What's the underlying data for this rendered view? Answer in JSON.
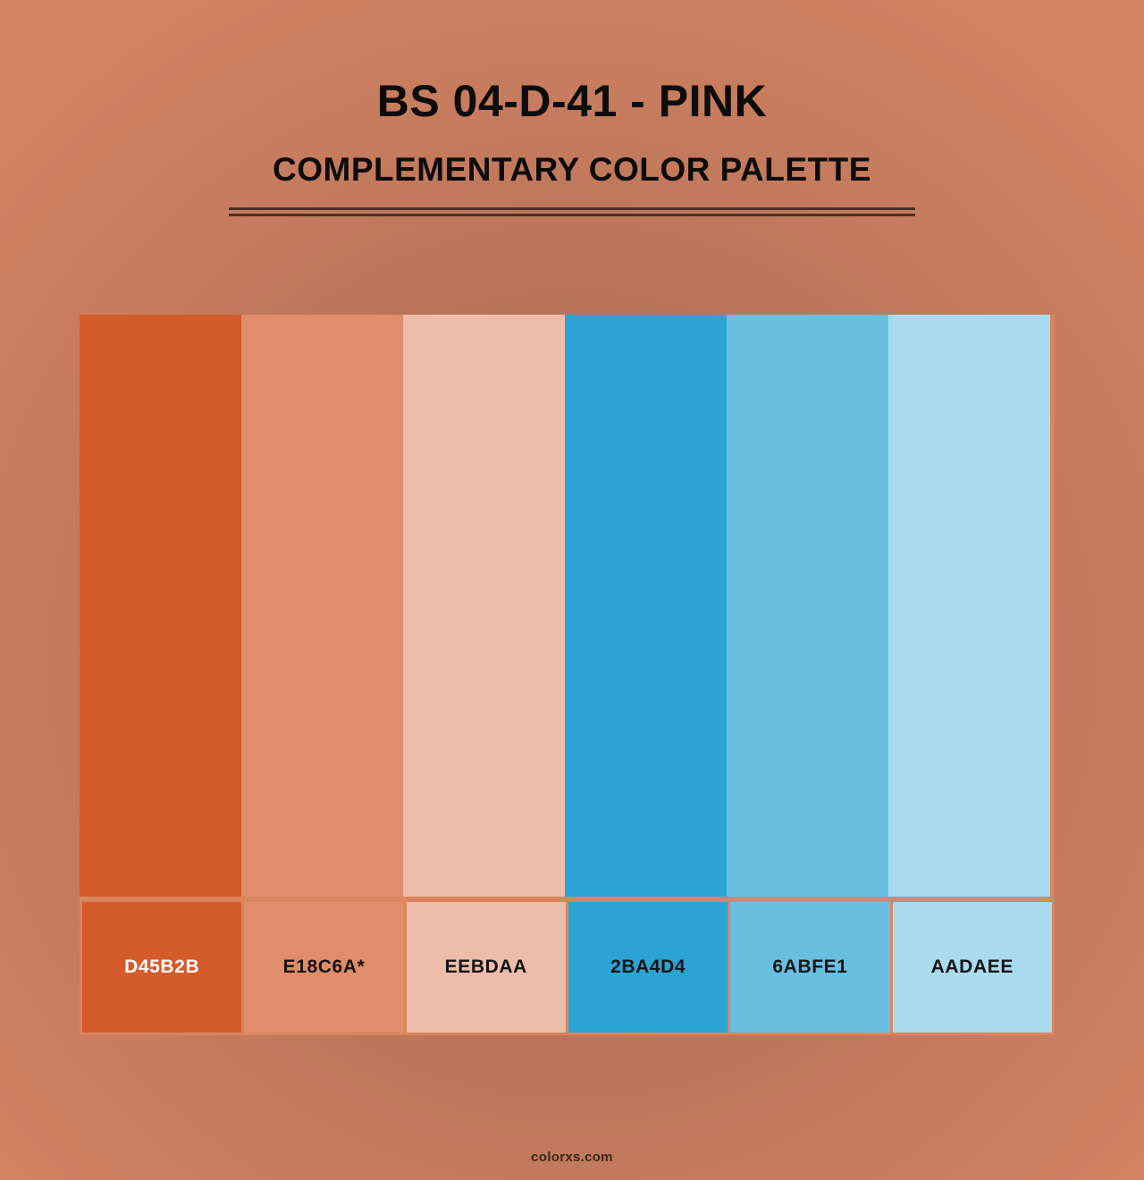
{
  "page": {
    "background_center_color": "#A86C55",
    "background_edge_color": "#D28263",
    "grid_line_color": "#D9855E",
    "divider_color": "#4A3227"
  },
  "header": {
    "title": "BS 04-D-41 - PINK",
    "subtitle": "COMPLEMENTARY COLOR PALETTE"
  },
  "palette": {
    "swatches": [
      {
        "hex": "#D45B2B",
        "label": "D45B2B",
        "label_color": "#FFFFFF"
      },
      {
        "hex": "#E18C6A",
        "label": "E18C6A*",
        "label_color": "#141414"
      },
      {
        "hex": "#EEBDAA",
        "label": "EEBDAA",
        "label_color": "#141414"
      },
      {
        "hex": "#2BA4D4",
        "label": "2BA4D4",
        "label_color": "#141414"
      },
      {
        "hex": "#6ABFE1",
        "label": "6ABFE1",
        "label_color": "#141414"
      },
      {
        "hex": "#AADAEE",
        "label": "AADAEE",
        "label_color": "#141414"
      }
    ]
  },
  "footer": {
    "site": "colorxs.com"
  }
}
